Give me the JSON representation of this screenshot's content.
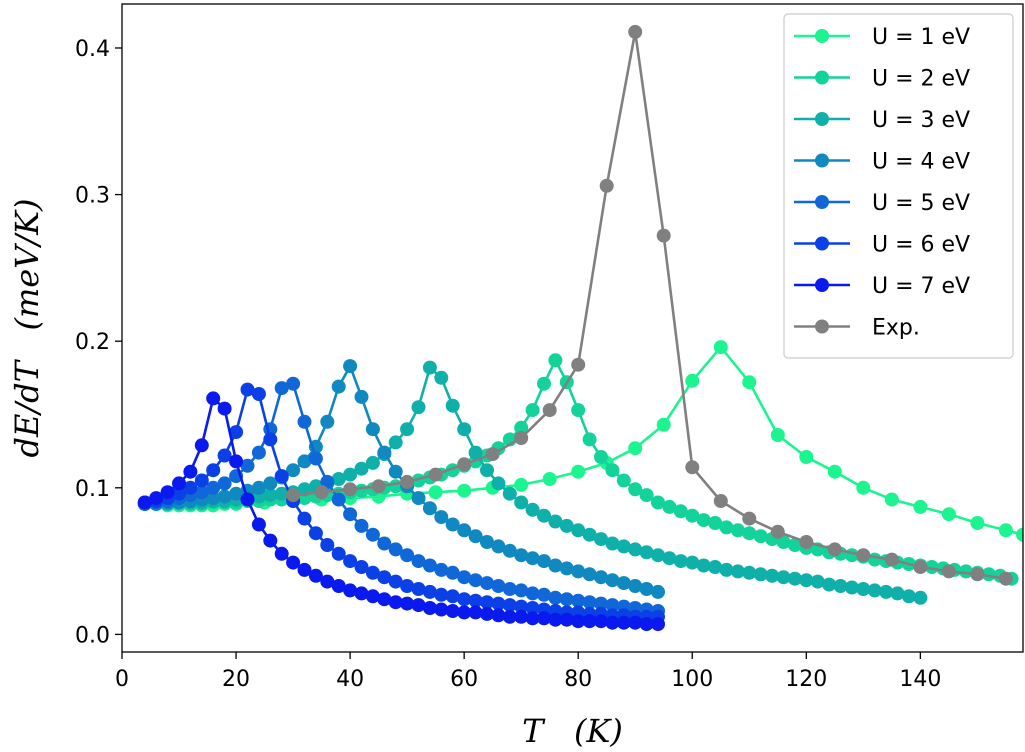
{
  "chart_data": {
    "type": "line",
    "xlabel": "T   (K)",
    "ylabel": "dE/dT   (meV/K)",
    "xlim": [
      0,
      158
    ],
    "ylim": [
      -0.012,
      0.43
    ],
    "xticks": [
      0,
      20,
      40,
      60,
      80,
      100,
      120,
      140
    ],
    "yticks": [
      0.0,
      0.1,
      0.2,
      0.3,
      0.4
    ],
    "xtick_labels": [
      "0",
      "20",
      "40",
      "60",
      "80",
      "100",
      "120",
      "140"
    ],
    "ytick_labels": [
      "0.0",
      "0.1",
      "0.2",
      "0.3",
      "0.4"
    ],
    "grid": false,
    "legend_position": "top-right",
    "series": [
      {
        "name": "U = 1 eV",
        "color": "#1cf58f",
        "x": [
          4,
          6,
          8,
          10,
          12,
          14,
          16,
          18,
          20,
          25,
          30,
          35,
          40,
          45,
          50,
          55,
          60,
          65,
          70,
          75,
          80,
          85,
          90,
          95,
          100,
          105,
          110,
          115,
          120,
          125,
          130,
          135,
          140,
          145,
          150,
          155,
          158
        ],
        "y": [
          0.09,
          0.089,
          0.088,
          0.088,
          0.088,
          0.088,
          0.088,
          0.089,
          0.089,
          0.09,
          0.091,
          0.092,
          0.093,
          0.094,
          0.096,
          0.097,
          0.098,
          0.1,
          0.102,
          0.106,
          0.111,
          0.117,
          0.127,
          0.143,
          0.173,
          0.196,
          0.172,
          0.136,
          0.121,
          0.111,
          0.1,
          0.092,
          0.087,
          0.082,
          0.076,
          0.071,
          0.068
        ]
      },
      {
        "name": "U = 2 eV",
        "color": "#14d39a",
        "x": [
          4,
          6,
          8,
          10,
          12,
          14,
          16,
          18,
          20,
          22,
          24,
          26,
          28,
          30,
          32,
          34,
          36,
          38,
          40,
          42,
          44,
          46,
          48,
          50,
          52,
          54,
          56,
          58,
          60,
          62,
          64,
          66,
          68,
          70,
          72,
          74,
          76,
          78,
          80,
          82,
          84,
          86,
          88,
          90,
          92,
          94,
          96,
          98,
          100,
          102,
          104,
          106,
          108,
          110,
          112,
          114,
          116,
          118,
          120,
          122,
          124,
          126,
          128,
          130,
          132,
          134,
          136,
          138,
          140,
          142,
          144,
          146,
          148,
          150,
          152,
          154,
          156
        ],
        "y": [
          0.089,
          0.089,
          0.089,
          0.089,
          0.089,
          0.089,
          0.09,
          0.09,
          0.09,
          0.091,
          0.091,
          0.092,
          0.092,
          0.093,
          0.093,
          0.094,
          0.095,
          0.096,
          0.097,
          0.098,
          0.099,
          0.1,
          0.101,
          0.103,
          0.105,
          0.107,
          0.109,
          0.112,
          0.115,
          0.118,
          0.122,
          0.127,
          0.133,
          0.141,
          0.153,
          0.171,
          0.187,
          0.172,
          0.153,
          0.133,
          0.121,
          0.112,
          0.105,
          0.099,
          0.095,
          0.09,
          0.087,
          0.084,
          0.081,
          0.078,
          0.076,
          0.073,
          0.071,
          0.069,
          0.067,
          0.065,
          0.063,
          0.061,
          0.059,
          0.058,
          0.056,
          0.055,
          0.054,
          0.053,
          0.051,
          0.05,
          0.049,
          0.048,
          0.047,
          0.046,
          0.045,
          0.044,
          0.043,
          0.042,
          0.041,
          0.04,
          0.038
        ]
      },
      {
        "name": "U = 3 eV",
        "color": "#10b0aa",
        "x": [
          4,
          6,
          8,
          10,
          12,
          14,
          16,
          18,
          20,
          22,
          24,
          26,
          28,
          30,
          32,
          34,
          36,
          38,
          40,
          42,
          44,
          46,
          48,
          50,
          52,
          54,
          56,
          58,
          60,
          62,
          64,
          66,
          68,
          70,
          72,
          74,
          76,
          78,
          80,
          82,
          84,
          86,
          88,
          90,
          92,
          94,
          96,
          98,
          100,
          102,
          104,
          106,
          108,
          110,
          112,
          114,
          116,
          118,
          120,
          122,
          124,
          126,
          128,
          130,
          132,
          134,
          136,
          138,
          140
        ],
        "y": [
          0.089,
          0.089,
          0.089,
          0.09,
          0.09,
          0.09,
          0.091,
          0.091,
          0.092,
          0.093,
          0.094,
          0.095,
          0.096,
          0.097,
          0.099,
          0.101,
          0.103,
          0.106,
          0.109,
          0.113,
          0.117,
          0.123,
          0.131,
          0.14,
          0.155,
          0.182,
          0.175,
          0.156,
          0.14,
          0.124,
          0.112,
          0.103,
          0.096,
          0.09,
          0.085,
          0.081,
          0.077,
          0.074,
          0.071,
          0.068,
          0.065,
          0.062,
          0.06,
          0.058,
          0.056,
          0.054,
          0.052,
          0.05,
          0.049,
          0.047,
          0.046,
          0.044,
          0.043,
          0.042,
          0.041,
          0.04,
          0.039,
          0.038,
          0.037,
          0.036,
          0.034,
          0.033,
          0.032,
          0.031,
          0.03,
          0.029,
          0.028,
          0.026,
          0.025
        ]
      },
      {
        "name": "U = 4 eV",
        "color": "#1088c0",
        "x": [
          4,
          6,
          8,
          10,
          12,
          14,
          16,
          18,
          20,
          22,
          24,
          26,
          28,
          30,
          32,
          34,
          36,
          38,
          40,
          42,
          44,
          46,
          48,
          50,
          52,
          54,
          56,
          58,
          60,
          62,
          64,
          66,
          68,
          70,
          72,
          74,
          76,
          78,
          80,
          82,
          84,
          86,
          88,
          90,
          92,
          94
        ],
        "y": [
          0.089,
          0.089,
          0.09,
          0.09,
          0.091,
          0.092,
          0.093,
          0.094,
          0.096,
          0.098,
          0.1,
          0.103,
          0.107,
          0.112,
          0.118,
          0.128,
          0.145,
          0.169,
          0.183,
          0.162,
          0.14,
          0.124,
          0.111,
          0.101,
          0.093,
          0.086,
          0.08,
          0.075,
          0.071,
          0.067,
          0.063,
          0.06,
          0.057,
          0.054,
          0.052,
          0.05,
          0.047,
          0.045,
          0.043,
          0.041,
          0.039,
          0.037,
          0.035,
          0.033,
          0.031,
          0.029
        ]
      },
      {
        "name": "U = 5 eV",
        "color": "#1068d8",
        "x": [
          4,
          6,
          8,
          10,
          12,
          14,
          16,
          18,
          20,
          22,
          24,
          26,
          28,
          30,
          32,
          34,
          36,
          38,
          40,
          42,
          44,
          46,
          48,
          50,
          52,
          54,
          56,
          58,
          60,
          62,
          64,
          66,
          68,
          70,
          72,
          74,
          76,
          78,
          80,
          82,
          84,
          86,
          88,
          90,
          92,
          94
        ],
        "y": [
          0.089,
          0.09,
          0.091,
          0.093,
          0.095,
          0.097,
          0.1,
          0.103,
          0.108,
          0.115,
          0.124,
          0.14,
          0.168,
          0.171,
          0.145,
          0.12,
          0.104,
          0.092,
          0.082,
          0.074,
          0.068,
          0.062,
          0.058,
          0.054,
          0.05,
          0.047,
          0.044,
          0.042,
          0.039,
          0.037,
          0.035,
          0.033,
          0.031,
          0.03,
          0.028,
          0.027,
          0.025,
          0.024,
          0.023,
          0.022,
          0.021,
          0.02,
          0.019,
          0.018,
          0.017,
          0.016
        ]
      },
      {
        "name": "U = 6 eV",
        "color": "#0a40e6",
        "x": [
          4,
          6,
          8,
          10,
          12,
          14,
          16,
          18,
          20,
          22,
          24,
          26,
          28,
          30,
          32,
          34,
          36,
          38,
          40,
          42,
          44,
          46,
          48,
          50,
          52,
          54,
          56,
          58,
          60,
          62,
          64,
          66,
          68,
          70,
          72,
          74,
          76,
          78,
          80,
          82,
          84,
          86,
          88,
          90,
          92,
          94
        ],
        "y": [
          0.09,
          0.091,
          0.093,
          0.096,
          0.1,
          0.105,
          0.112,
          0.122,
          0.138,
          0.167,
          0.164,
          0.133,
          0.108,
          0.091,
          0.079,
          0.069,
          0.061,
          0.055,
          0.05,
          0.046,
          0.042,
          0.039,
          0.036,
          0.033,
          0.031,
          0.029,
          0.027,
          0.026,
          0.024,
          0.023,
          0.022,
          0.021,
          0.02,
          0.019,
          0.018,
          0.017,
          0.016,
          0.015,
          0.015,
          0.014,
          0.014,
          0.013,
          0.013,
          0.012,
          0.012,
          0.012
        ]
      },
      {
        "name": "U = 7 eV",
        "color": "#0a1aee",
        "x": [
          4,
          6,
          8,
          10,
          12,
          14,
          16,
          18,
          20,
          22,
          24,
          26,
          28,
          30,
          32,
          34,
          36,
          38,
          40,
          42,
          44,
          46,
          48,
          50,
          52,
          54,
          56,
          58,
          60,
          62,
          64,
          66,
          68,
          70,
          72,
          74,
          76,
          78,
          80,
          82,
          84,
          86,
          88,
          90,
          92,
          94
        ],
        "y": [
          0.09,
          0.093,
          0.097,
          0.103,
          0.111,
          0.129,
          0.161,
          0.154,
          0.118,
          0.092,
          0.075,
          0.064,
          0.055,
          0.049,
          0.044,
          0.04,
          0.036,
          0.033,
          0.03,
          0.028,
          0.026,
          0.024,
          0.022,
          0.021,
          0.02,
          0.018,
          0.017,
          0.016,
          0.015,
          0.015,
          0.014,
          0.013,
          0.012,
          0.012,
          0.011,
          0.011,
          0.01,
          0.01,
          0.009,
          0.009,
          0.009,
          0.008,
          0.008,
          0.008,
          0.007,
          0.007
        ]
      },
      {
        "name": "Exp.",
        "color": "#808080",
        "x": [
          30,
          35,
          40,
          45,
          50,
          55,
          60,
          65,
          70,
          75,
          80,
          85,
          90,
          95,
          100,
          105,
          110,
          115,
          120,
          125,
          130,
          135,
          140,
          145,
          150,
          155
        ],
        "y": [
          0.095,
          0.097,
          0.099,
          0.101,
          0.104,
          0.109,
          0.116,
          0.123,
          0.134,
          0.153,
          0.184,
          0.306,
          0.411,
          0.272,
          0.114,
          0.091,
          0.079,
          0.07,
          0.063,
          0.058,
          0.054,
          0.051,
          0.046,
          0.043,
          0.041,
          0.038
        ]
      }
    ]
  }
}
